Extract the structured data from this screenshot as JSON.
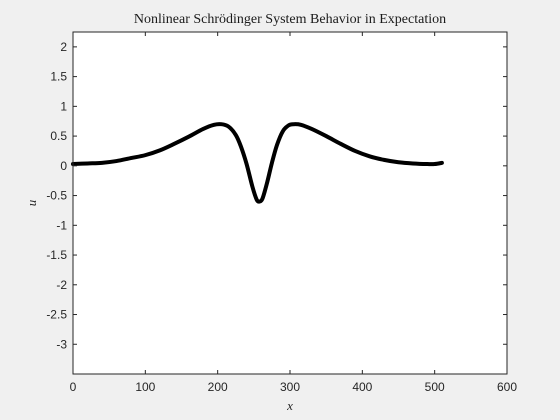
{
  "chart_data": {
    "type": "line",
    "title": "Nonlinear Schrödinger System Behavior in Expectation",
    "xlabel": "x",
    "ylabel": "u",
    "xlim": [
      0,
      600
    ],
    "ylim": [
      -3.5,
      2.25
    ],
    "xticks": [
      0,
      100,
      200,
      300,
      400,
      500,
      600
    ],
    "yticks": [
      2,
      1.5,
      1,
      0.5,
      0,
      -0.5,
      -1,
      -1.5,
      -2,
      -2.5,
      -3
    ],
    "grid": false,
    "colors": {
      "line": "#000000",
      "axes_bg": "#ffffff",
      "figure_bg": "#f0f0f0",
      "axis": "#262626"
    },
    "series": [
      {
        "x": [
          0,
          20,
          40,
          60,
          80,
          100,
          120,
          140,
          160,
          180,
          195,
          205,
          215,
          225,
          232,
          240,
          248,
          254,
          258,
          262,
          268,
          275,
          282,
          290,
          298,
          305,
          315,
          330,
          350,
          370,
          390,
          410,
          430,
          450,
          470,
          490,
          500,
          510
        ],
        "y": [
          0.03,
          0.04,
          0.05,
          0.08,
          0.13,
          0.18,
          0.26,
          0.37,
          0.49,
          0.62,
          0.69,
          0.7,
          0.66,
          0.52,
          0.33,
          0.03,
          -0.35,
          -0.57,
          -0.6,
          -0.55,
          -0.3,
          0.05,
          0.35,
          0.58,
          0.68,
          0.7,
          0.69,
          0.62,
          0.5,
          0.37,
          0.25,
          0.16,
          0.1,
          0.06,
          0.04,
          0.03,
          0.03,
          0.05
        ]
      }
    ]
  }
}
